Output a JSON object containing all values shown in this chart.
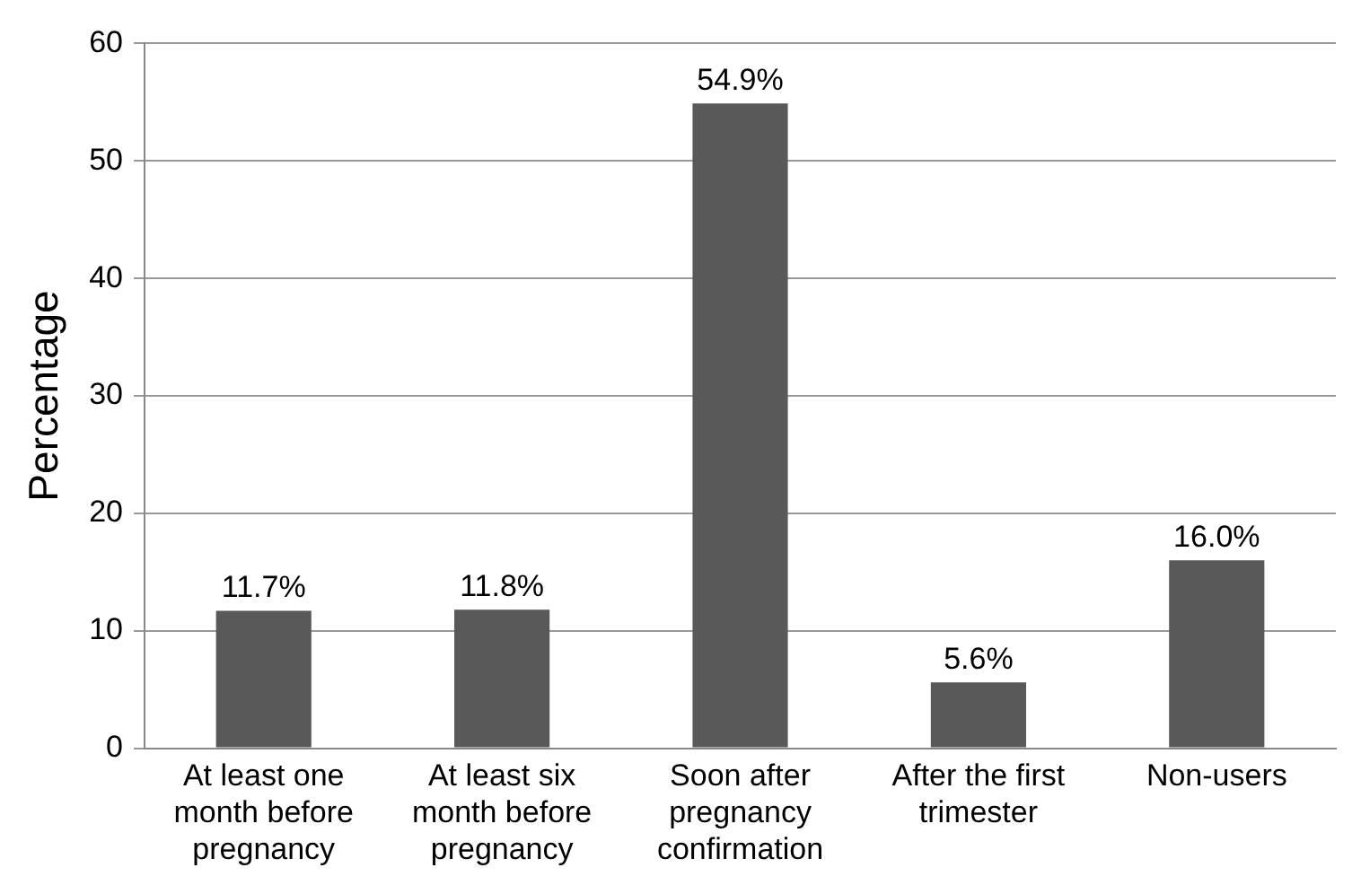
{
  "chart_data": {
    "type": "bar",
    "ylabel": "Percentage",
    "categories": [
      "At least one month before pregnancy",
      "At least six month before pregnancy",
      "Soon after pregnancy confirmation",
      "After the first trimester",
      "Non-users"
    ],
    "values": [
      11.7,
      11.8,
      54.9,
      5.6,
      16.0
    ],
    "value_labels": [
      "11.7%",
      "11.8%",
      "54.9%",
      "5.6%",
      "16.0%"
    ],
    "color": "#595959",
    "ylim": [
      0,
      60
    ],
    "yticks": [
      0,
      10,
      20,
      30,
      40,
      50,
      60
    ],
    "grid": "y",
    "legend": false
  }
}
